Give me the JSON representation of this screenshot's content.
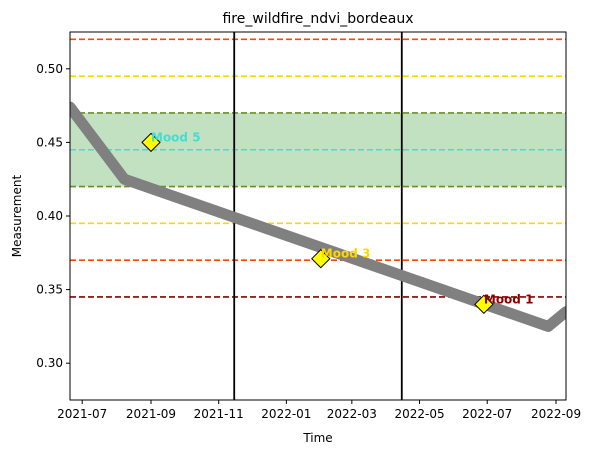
{
  "chart_data": {
    "type": "line",
    "title": "fire_wildfire_ndvi_bordeaux",
    "xlabel": "Time",
    "ylabel": "Measurement",
    "xlim": [
      "2021-06-20",
      "2022-09-10"
    ],
    "ylim": [
      0.275,
      0.525
    ],
    "x_ticks": [
      "2021-07",
      "2021-09",
      "2021-11",
      "2022-01",
      "2022-03",
      "2022-05",
      "2022-07",
      "2022-09"
    ],
    "y_ticks": [
      0.3,
      0.35,
      0.4,
      0.45,
      0.5
    ],
    "grid": false,
    "series": [
      {
        "color": "#808080",
        "points": [
          {
            "x": "2021-06-20",
            "y": 0.474
          },
          {
            "x": "2021-08-08",
            "y": 0.425
          },
          {
            "x": "2022-08-25",
            "y": 0.325
          },
          {
            "x": "2022-09-10",
            "y": 0.335
          }
        ]
      }
    ],
    "band": {
      "y_from": 0.42,
      "y_to": 0.47,
      "color": "#c1e1c1"
    },
    "horizontal_lines": [
      {
        "y": 0.52,
        "color": "#ff4500",
        "style": "dashed"
      },
      {
        "y": 0.495,
        "color": "#ffd700",
        "style": "dashed"
      },
      {
        "y": 0.47,
        "color": "#6b8e23",
        "style": "dashed"
      },
      {
        "y": 0.445,
        "color": "#40e0d0",
        "style": "dashed"
      },
      {
        "y": 0.42,
        "color": "#6b8e23",
        "style": "dashed"
      },
      {
        "y": 0.395,
        "color": "#ffd700",
        "style": "dashed"
      },
      {
        "y": 0.37,
        "color": "#ff4500",
        "style": "dashed"
      },
      {
        "y": 0.345,
        "color": "#8b0000",
        "style": "dashed"
      }
    ],
    "vertical_lines": [
      {
        "x": "2021-11-15",
        "color": "#000000"
      },
      {
        "x": "2022-04-15",
        "color": "#000000"
      }
    ],
    "annotations": [
      {
        "x": "2021-09-01",
        "y": 0.45,
        "label": "Mood 5",
        "label_color": "#40e0d0",
        "marker_color": "#ffff00"
      },
      {
        "x": "2022-02-01",
        "y": 0.371,
        "label": "Mood 3",
        "label_color": "#ffd700",
        "marker_color": "#ffff00"
      },
      {
        "x": "2022-06-28",
        "y": 0.34,
        "label": "Mood 1",
        "label_color": "#8b0000",
        "marker_color": "#ffff00"
      }
    ]
  }
}
